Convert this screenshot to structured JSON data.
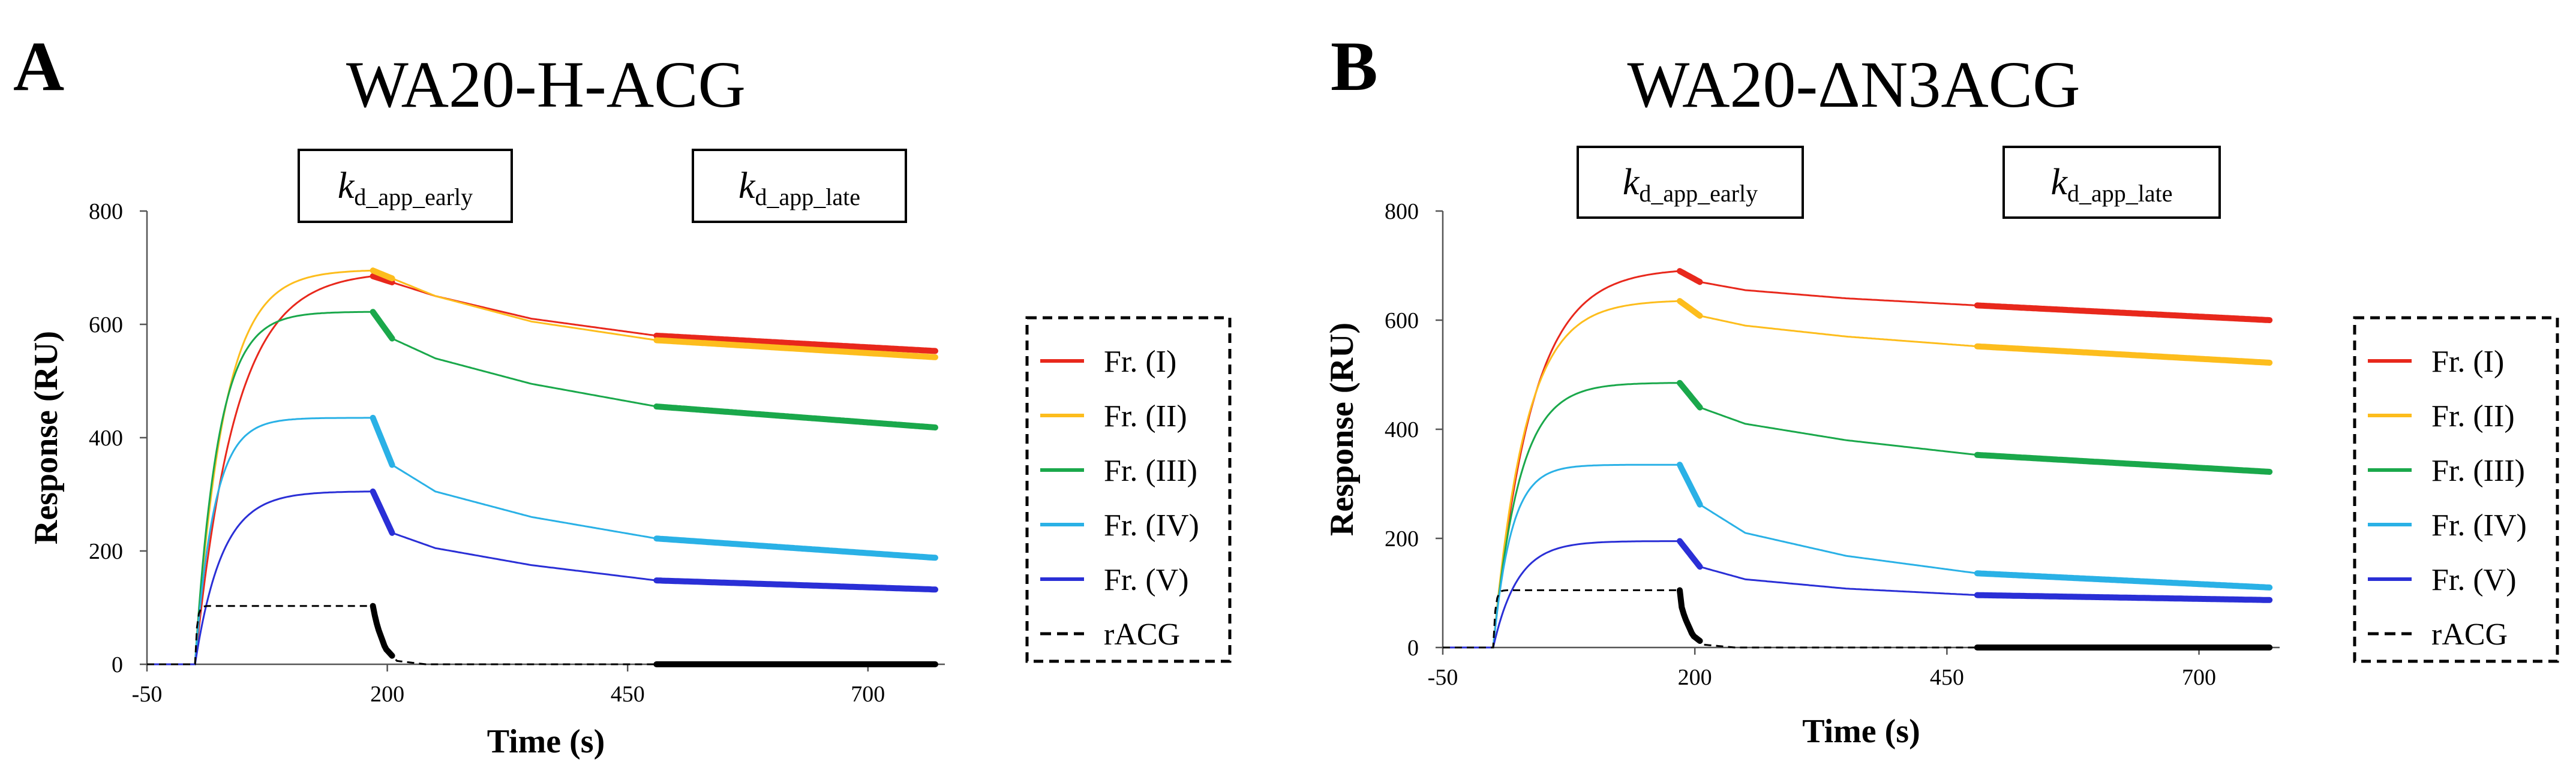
{
  "chart_data": [
    {
      "type": "line",
      "panel": "A",
      "title": "WA20-H-ACG",
      "xlabel": "Time (s)",
      "ylabel": "Response (RU)",
      "xlim": [
        -50,
        780
      ],
      "ylim": [
        0,
        800
      ],
      "xticks": [
        "-50",
        "200",
        "450",
        "700"
      ],
      "yticks": [
        "0",
        "200",
        "400",
        "600",
        "800"
      ],
      "phase_boxes": [
        {
          "main": "k",
          "sub": "d_app_early"
        },
        {
          "main": "k",
          "sub": "d_app_late"
        }
      ],
      "injection": {
        "start": 0,
        "end": 185
      },
      "fit_windows": {
        "early": [
          185,
          205
        ],
        "late": [
          480,
          770
        ]
      },
      "series": [
        {
          "name": "Fr. (I)",
          "color": "#e8281c",
          "style": "solid",
          "Rmax": 685,
          "tau_a": 42,
          "dissociation": [
            [
              185,
              685
            ],
            [
              250,
              650
            ],
            [
              350,
              610
            ],
            [
              480,
              580
            ],
            [
              770,
              553
            ]
          ]
        },
        {
          "name": "Fr. (II)",
          "color": "#fdbd1d",
          "style": "solid",
          "Rmax": 695,
          "tau_a": 30,
          "dissociation": [
            [
              185,
              695
            ],
            [
              250,
              650
            ],
            [
              350,
              605
            ],
            [
              480,
              572
            ],
            [
              770,
              542
            ]
          ]
        },
        {
          "name": "Fr. (III)",
          "color": "#1aa84b",
          "style": "solid",
          "Rmax": 622,
          "tau_a": 24,
          "dissociation": [
            [
              185,
              622
            ],
            [
              205,
              575
            ],
            [
              250,
              540
            ],
            [
              350,
              495
            ],
            [
              480,
              455
            ],
            [
              770,
              418
            ]
          ]
        },
        {
          "name": "Fr. (IV)",
          "color": "#2ab1e6",
          "style": "solid",
          "Rmax": 435,
          "tau_a": 20,
          "dissociation": [
            [
              185,
              435
            ],
            [
              205,
              352
            ],
            [
              250,
              305
            ],
            [
              350,
              260
            ],
            [
              480,
              222
            ],
            [
              770,
              188
            ]
          ]
        },
        {
          "name": "Fr. (V)",
          "color": "#2a2fd6",
          "style": "solid",
          "Rmax": 305,
          "tau_a": 28,
          "dissociation": [
            [
              185,
              305
            ],
            [
              205,
              232
            ],
            [
              250,
              205
            ],
            [
              350,
              175
            ],
            [
              480,
              148
            ],
            [
              770,
              132
            ]
          ]
        },
        {
          "name": "rACG",
          "color": "#000000",
          "style": "dashed",
          "Rmax": 103,
          "tau_a": 2,
          "dissociation": [
            [
              185,
              100
            ],
            [
              190,
              65
            ],
            [
              198,
              28
            ],
            [
              210,
              6
            ],
            [
              240,
              0
            ],
            [
              770,
              0
            ]
          ]
        }
      ]
    },
    {
      "type": "line",
      "panel": "B",
      "title": "WA20-ΔN3ACG",
      "xlabel": "Time (s)",
      "ylabel": "Response (RU)",
      "xlim": [
        -50,
        780
      ],
      "ylim": [
        0,
        800
      ],
      "xticks": [
        "-50",
        "200",
        "450",
        "700"
      ],
      "yticks": [
        "0",
        "200",
        "400",
        "600",
        "800"
      ],
      "phase_boxes": [
        {
          "main": "k",
          "sub": "d_app_early"
        },
        {
          "main": "k",
          "sub": "d_app_late"
        }
      ],
      "injection": {
        "start": 0,
        "end": 185
      },
      "fit_windows": {
        "early": [
          185,
          205
        ],
        "late": [
          480,
          770
        ]
      },
      "series": [
        {
          "name": "Fr. (I)",
          "color": "#e8281c",
          "style": "solid",
          "Rmax": 690,
          "tau_a": 38,
          "dissociation": [
            [
              185,
              690
            ],
            [
              205,
              670
            ],
            [
              250,
              655
            ],
            [
              350,
              640
            ],
            [
              480,
              627
            ],
            [
              770,
              600
            ]
          ]
        },
        {
          "name": "Fr. (II)",
          "color": "#fdbd1d",
          "style": "solid",
          "Rmax": 635,
          "tau_a": 32,
          "dissociation": [
            [
              185,
              635
            ],
            [
              205,
              608
            ],
            [
              250,
              590
            ],
            [
              350,
              570
            ],
            [
              480,
              552
            ],
            [
              770,
              522
            ]
          ]
        },
        {
          "name": "Fr. (III)",
          "color": "#1aa84b",
          "style": "solid",
          "Rmax": 485,
          "tau_a": 26,
          "dissociation": [
            [
              185,
              485
            ],
            [
              205,
              440
            ],
            [
              250,
              410
            ],
            [
              350,
              380
            ],
            [
              480,
              353
            ],
            [
              770,
              322
            ]
          ]
        },
        {
          "name": "Fr. (IV)",
          "color": "#2ab1e6",
          "style": "solid",
          "Rmax": 335,
          "tau_a": 18,
          "dissociation": [
            [
              185,
              335
            ],
            [
              205,
              262
            ],
            [
              250,
              210
            ],
            [
              350,
              168
            ],
            [
              480,
              136
            ],
            [
              770,
              110
            ]
          ]
        },
        {
          "name": "Fr. (V)",
          "color": "#2a2fd6",
          "style": "solid",
          "Rmax": 195,
          "tau_a": 24,
          "dissociation": [
            [
              185,
              195
            ],
            [
              205,
              148
            ],
            [
              250,
              125
            ],
            [
              350,
              108
            ],
            [
              480,
              96
            ],
            [
              770,
              87
            ]
          ]
        },
        {
          "name": "rACG",
          "color": "#000000",
          "style": "dashed",
          "Rmax": 105,
          "tau_a": 2,
          "dissociation": [
            [
              185,
              86
            ],
            [
              190,
              55
            ],
            [
              198,
              22
            ],
            [
              210,
              5
            ],
            [
              240,
              0
            ],
            [
              770,
              0
            ]
          ]
        }
      ]
    }
  ]
}
